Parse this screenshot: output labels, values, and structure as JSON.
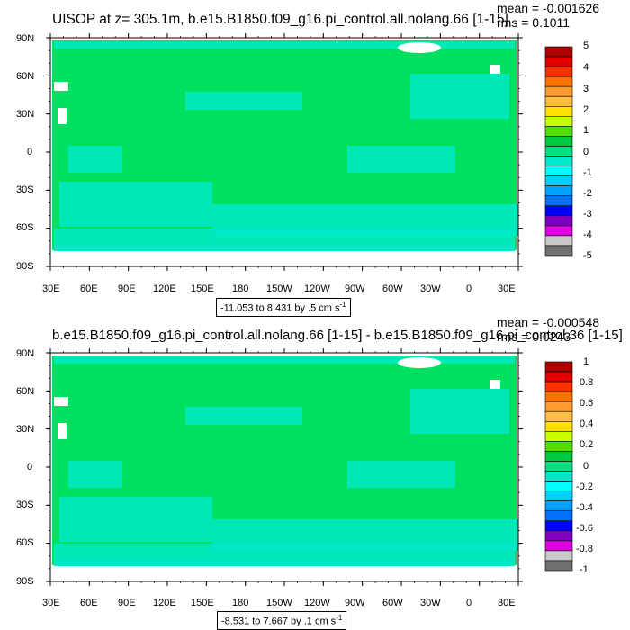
{
  "colors": {
    "land": "#e6f0ff",
    "ocean_main": "#00e060",
    "ocean_alt": "#00e8c8",
    "ice": "#ffffff"
  },
  "icons": [
    "land-mask-shape",
    "colorbar-swatch"
  ],
  "panels": [
    {
      "title": "UISOP at z= 305.1m, b.e15.B1850.f09_g16.pi_control.all.nolang.66 [1-15]",
      "mean": "mean = -0.001626",
      "rms": "rms = 0.1011",
      "range_label": "-11.053 to 8.431 by .5 cm s",
      "range_exp": "-1",
      "lat_labels": [
        "90N",
        "60N",
        "30N",
        "0",
        "30S",
        "60S",
        "90S"
      ],
      "lon_labels": [
        "30E",
        "60E",
        "90E",
        "120E",
        "150E",
        "180",
        "150W",
        "120W",
        "90W",
        "60W",
        "30W",
        "0",
        "30E"
      ],
      "colorbar": {
        "labels": [
          "5",
          "4",
          "3",
          "2",
          "1",
          "0",
          "-1",
          "-2",
          "-3",
          "-4",
          "-5"
        ],
        "colors": [
          "#b00000",
          "#e00000",
          "#ff3000",
          "#ff7000",
          "#ff9a30",
          "#ffbe40",
          "#ffe000",
          "#c8ff00",
          "#50e000",
          "#00c840",
          "#00e080",
          "#00e8c8",
          "#00ffff",
          "#00d0ff",
          "#00a0ff",
          "#0070ff",
          "#0000ff",
          "#8000c0",
          "#e000e0",
          "#c8c8c8",
          "#707070"
        ]
      }
    },
    {
      "title": "b.e15.B1850.f09_g16.pi_control.all.nolang.66 [1-15] - b.e15.B1850.f09_g16.pi_control.36 [1-15]",
      "mean": "mean = -0.000548",
      "rms": "rms = 0.0243",
      "range_label": "-8.531 to 7.667 by .1 cm s",
      "range_exp": "-1",
      "lat_labels": [
        "90N",
        "60N",
        "30N",
        "0",
        "30S",
        "60S",
        "90S"
      ],
      "lon_labels": [
        "30E",
        "60E",
        "90E",
        "120E",
        "150E",
        "180",
        "150W",
        "120W",
        "90W",
        "60W",
        "30W",
        "0",
        "30E"
      ],
      "colorbar": {
        "labels": [
          "1",
          "0.8",
          "0.6",
          "0.4",
          "0.2",
          "0",
          "-0.2",
          "-0.4",
          "-0.6",
          "-0.8",
          "-1"
        ],
        "colors": [
          "#b00000",
          "#e00000",
          "#ff3000",
          "#ff7000",
          "#ff9a30",
          "#ffbe40",
          "#ffe000",
          "#c8ff00",
          "#50e000",
          "#00c840",
          "#00e080",
          "#00e8c8",
          "#00ffff",
          "#00d0ff",
          "#00a0ff",
          "#0070ff",
          "#0000ff",
          "#8000c0",
          "#e000e0",
          "#c8c8c8",
          "#707070"
        ]
      }
    }
  ]
}
